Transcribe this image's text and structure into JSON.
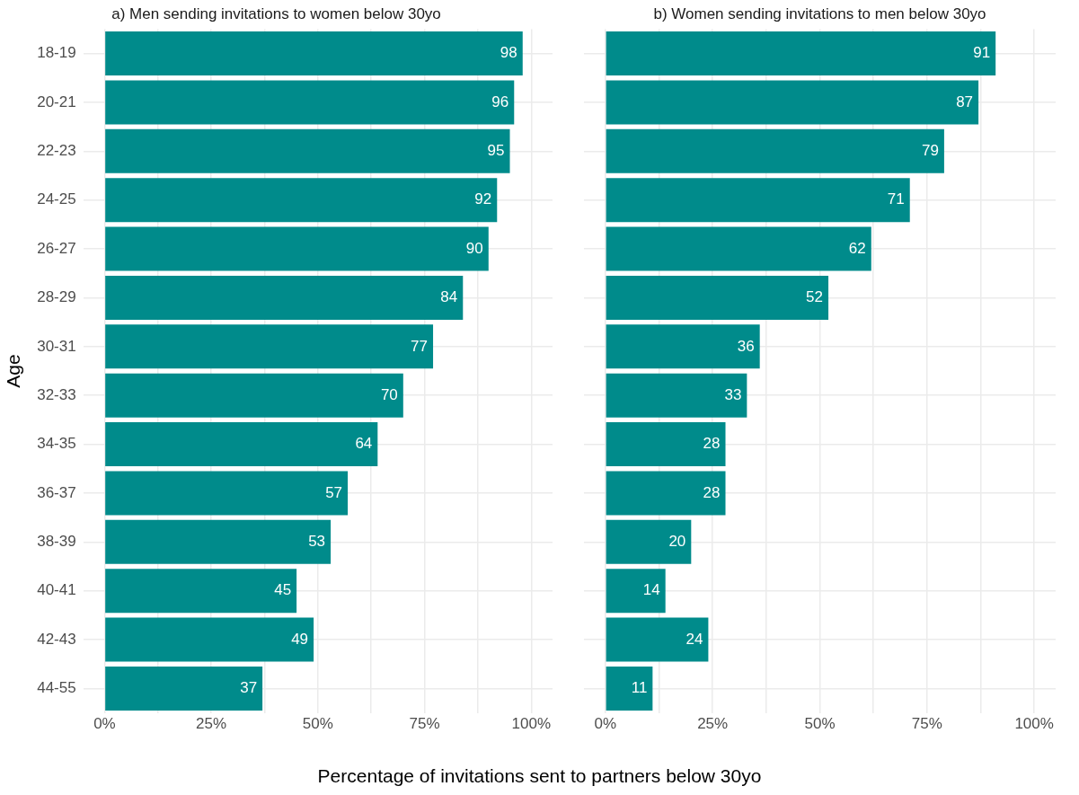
{
  "chart_data": [
    {
      "type": "bar",
      "orientation": "horizontal",
      "title": "a) Men sending invitations to women below 30yo",
      "ylabel": "Age",
      "xlabel": "Percentage of invitations sent to partners below 30yo",
      "categories": [
        "18-19",
        "20-21",
        "22-23",
        "24-25",
        "26-27",
        "28-29",
        "30-31",
        "32-33",
        "34-35",
        "36-37",
        "38-39",
        "40-41",
        "42-43",
        "44-55"
      ],
      "values": [
        98,
        96,
        95,
        92,
        90,
        84,
        77,
        70,
        64,
        57,
        53,
        45,
        49,
        37
      ],
      "color": "#008b8b",
      "xlim": [
        -5,
        105
      ],
      "xticks": [
        {
          "value": 0,
          "label": "0%"
        },
        {
          "value": 12.5,
          "label": null
        },
        {
          "value": 25,
          "label": "25%"
        },
        {
          "value": 37.5,
          "label": null
        },
        {
          "value": 50,
          "label": "50%"
        },
        {
          "value": 62.5,
          "label": null
        },
        {
          "value": 75,
          "label": "75%"
        },
        {
          "value": 87.5,
          "label": null
        },
        {
          "value": 100,
          "label": "100%"
        }
      ],
      "grid": true,
      "legend": false,
      "data_labels": true
    },
    {
      "type": "bar",
      "orientation": "horizontal",
      "title": "b) Women sending invitations to men below 30yo",
      "categories": [
        null,
        null,
        null,
        null,
        null,
        null,
        null,
        null,
        null,
        null,
        null,
        null,
        null,
        null
      ],
      "values": [
        91,
        87,
        79,
        71,
        62,
        52,
        36,
        33,
        28,
        28,
        20,
        14,
        24,
        11
      ],
      "color": "#008b8b",
      "xlim": [
        -5,
        105
      ],
      "xticks": [
        {
          "value": 0,
          "label": "0%"
        },
        {
          "value": 12.5,
          "label": null
        },
        {
          "value": 25,
          "label": "25%"
        },
        {
          "value": 37.5,
          "label": null
        },
        {
          "value": 50,
          "label": "50%"
        },
        {
          "value": 62.5,
          "label": null
        },
        {
          "value": 75,
          "label": "75%"
        },
        {
          "value": 87.5,
          "label": null
        },
        {
          "value": 100,
          "label": "100%"
        }
      ],
      "grid": true,
      "legend": false,
      "data_labels": true,
      "tick_labels": "x"
    }
  ]
}
